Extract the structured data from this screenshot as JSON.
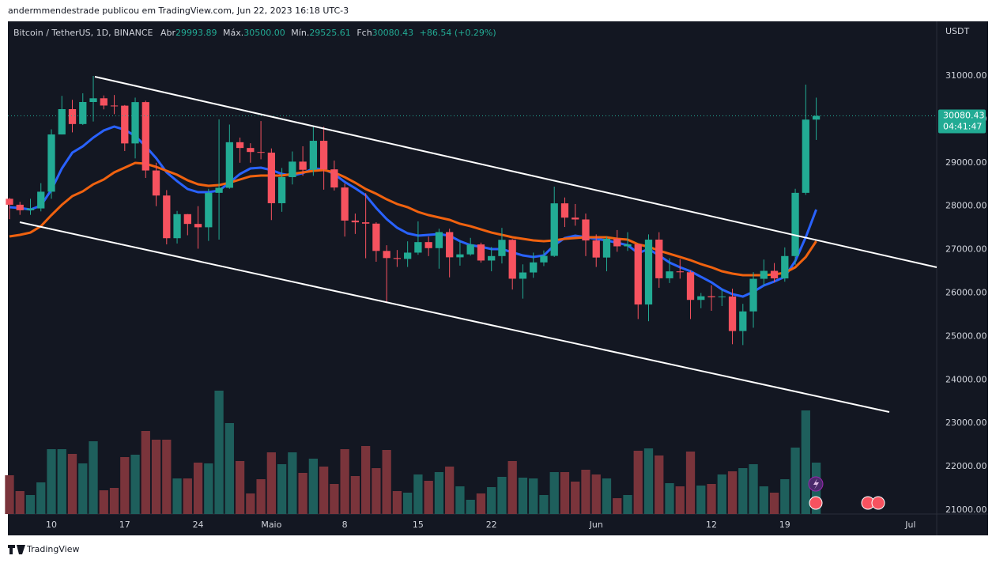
{
  "header": {
    "byline": "andermmendestrade publicou em TradingView.com, Jun 22, 2023 16:18 UTC-3",
    "brand": "TradingView"
  },
  "chart_data": {
    "type": "candlestick",
    "title": "Bitcoin / TetherUS, 1D, BINANCE",
    "legend": [
      {
        "label": "Abr",
        "value": "29993.89"
      },
      {
        "label": "Máx.",
        "value": "30500.00"
      },
      {
        "label": "Mín.",
        "value": "29525.61"
      },
      {
        "label": "Fch",
        "value": "30080.43"
      }
    ],
    "change": "+86.54 (+0.29%)",
    "currency": "USDT",
    "price_label": {
      "value": 30080.43,
      "label": "30080.43"
    },
    "countdown": "04:41:47",
    "up_color": "#22ab94",
    "down_color": "#f7525f",
    "volume_up_color": "#1e5f5c",
    "volume_down_color": "#7a343b",
    "x": [
      96,
      97,
      98,
      99,
      100,
      101,
      102,
      103,
      104,
      105,
      106,
      107,
      108,
      109,
      110,
      111,
      112,
      113,
      114,
      115,
      116,
      117,
      118,
      119,
      120,
      121,
      122,
      123,
      124,
      125,
      126,
      127,
      128,
      129,
      130,
      131,
      132,
      133,
      134,
      135,
      136,
      137,
      138,
      139,
      140,
      141,
      142,
      143,
      144,
      145,
      146,
      147,
      148,
      149,
      150,
      151,
      152,
      153,
      154,
      155,
      156,
      157,
      158,
      159,
      160,
      161,
      162,
      163,
      164,
      165,
      166,
      167,
      168,
      169,
      170,
      171,
      172,
      173
    ],
    "open": [
      28170,
      28033,
      27906,
      27948,
      28333,
      29652,
      30235,
      29892,
      30399,
      30485,
      30318,
      30315,
      29445,
      30397,
      28822,
      28245,
      27262,
      27816,
      27591,
      27514,
      28307,
      28423,
      29473,
      29340,
      29248,
      29233,
      28068,
      28669,
      29026,
      28838,
      29506,
      28848,
      28430,
      27668,
      27628,
      27598,
      26969,
      26805,
      26785,
      26930,
      27172,
      27033,
      27403,
      26822,
      26890,
      27118,
      26748,
      26851,
      27225,
      26329,
      26473,
      26705,
      26855,
      28065,
      27736,
      27694,
      27210,
      26817,
      27249,
      27075,
      27120,
      25735,
      27229,
      26339,
      26498,
      26478,
      25841,
      25925,
      25902,
      25920,
      25124,
      25576,
      26327,
      26510,
      26336,
      26851,
      28307,
      29993.89
    ],
    "high": [
      28190,
      28100,
      28170,
      28530,
      29770,
      30540,
      30450,
      30600,
      31000,
      30550,
      30560,
      30330,
      30500,
      30430,
      29000,
      28370,
      27890,
      27820,
      28000,
      28400,
      30000,
      29880,
      29580,
      29450,
      29960,
      29330,
      28880,
      29260,
      29380,
      29850,
      29830,
      29050,
      28520,
      27830,
      28300,
      27630,
      27100,
      26990,
      27190,
      27650,
      27300,
      27480,
      27480,
      27200,
      27270,
      27160,
      27060,
      27500,
      27240,
      26660,
      26930,
      26980,
      28450,
      28200,
      28050,
      27830,
      27350,
      27300,
      27450,
      27400,
      27130,
      27350,
      27400,
      26800,
      26780,
      26520,
      26000,
      26180,
      26090,
      26100,
      25750,
      26480,
      26770,
      26690,
      27050,
      28400,
      30800,
      30500
    ],
    "low": [
      27700,
      27800,
      27800,
      27880,
      28170,
      29650,
      29700,
      29870,
      29950,
      30230,
      30120,
      29270,
      29100,
      28650,
      28000,
      27120,
      27140,
      27330,
      27020,
      27200,
      27230,
      28400,
      29000,
      29000,
      29080,
      27680,
      27870,
      28500,
      28700,
      28700,
      28380,
      28360,
      27300,
      27360,
      26800,
      26720,
      25800,
      26600,
      26600,
      26880,
      26850,
      26560,
      26360,
      26630,
      26860,
      26700,
      26500,
      26680,
      26080,
      25870,
      26350,
      26620,
      26830,
      27520,
      27550,
      26850,
      26600,
      26500,
      26950,
      26970,
      25400,
      25350,
      26120,
      26230,
      26330,
      25400,
      25650,
      25590,
      25700,
      24820,
      24800,
      25200,
      26170,
      26250,
      26260,
      26650,
      28260,
      29525.61
    ],
    "close": [
      28033,
      27906,
      27948,
      28333,
      29652,
      30235,
      29892,
      30399,
      30485,
      30318,
      30315,
      29445,
      30397,
      28822,
      28245,
      27262,
      27816,
      27591,
      27514,
      28307,
      28423,
      29473,
      29340,
      29248,
      29233,
      28068,
      28669,
      29026,
      28838,
      29506,
      28848,
      28430,
      27668,
      27628,
      27598,
      26969,
      26805,
      26785,
      26930,
      27172,
      27033,
      27403,
      26822,
      26890,
      27118,
      26748,
      26851,
      27225,
      26329,
      26473,
      26705,
      26855,
      28065,
      27736,
      27694,
      27210,
      26817,
      27249,
      27075,
      27120,
      25735,
      27229,
      26339,
      26498,
      26478,
      25841,
      25925,
      25902,
      25920,
      25124,
      25576,
      26327,
      26510,
      26336,
      26851,
      28307,
      29993.89,
      30080.43
    ],
    "volume": [
      49000,
      29000,
      24000,
      40000,
      82000,
      82000,
      76000,
      64000,
      92000,
      30000,
      33000,
      72000,
      75000,
      105000,
      94000,
      94000,
      45000,
      45000,
      65000,
      64000,
      156000,
      115000,
      67000,
      26000,
      44000,
      78000,
      63000,
      78000,
      52000,
      70000,
      60000,
      38000,
      82000,
      48000,
      86000,
      58000,
      81000,
      29000,
      27000,
      50000,
      42000,
      53000,
      60000,
      35000,
      18000,
      26000,
      34000,
      47000,
      67000,
      46000,
      45000,
      24000,
      53000,
      53000,
      41000,
      56000,
      50000,
      45000,
      20000,
      24000,
      80000,
      83000,
      74000,
      39000,
      35000,
      79000,
      36000,
      38000,
      50000,
      54000,
      58000,
      63000,
      35000,
      27000,
      44000,
      84000,
      131000,
      65000
    ],
    "lines": [
      {
        "color": "#2962ff",
        "values": [
          27976,
          27958,
          27922,
          28013,
          28377,
          28869,
          29233,
          29379,
          29579,
          29743,
          29834,
          29761,
          29616,
          29379,
          29106,
          28778,
          28577,
          28395,
          28322,
          28322,
          28359,
          28541,
          28741,
          28869,
          28887,
          28832,
          28741,
          28705,
          28760,
          28869,
          28850,
          28741,
          28559,
          28413,
          28250,
          27958,
          27703,
          27503,
          27375,
          27321,
          27339,
          27357,
          27321,
          27193,
          27102,
          27066,
          27011,
          27011,
          26938,
          26865,
          26829,
          26865,
          27102,
          27266,
          27321,
          27284,
          27248,
          27211,
          27157,
          27102,
          26920,
          27011,
          26865,
          26701,
          26592,
          26501,
          26373,
          26246,
          26082,
          25973,
          25918,
          26027,
          26173,
          26264,
          26373,
          26738,
          27284,
          27922
        ]
      },
      {
        "color": "#f0620f",
        "values": [
          27302,
          27339,
          27393,
          27539,
          27794,
          28031,
          28231,
          28341,
          28504,
          28614,
          28778,
          28887,
          28996,
          28978,
          28905,
          28814,
          28723,
          28596,
          28504,
          28468,
          28486,
          28541,
          28614,
          28687,
          28705,
          28705,
          28705,
          28741,
          28778,
          28814,
          28832,
          28778,
          28668,
          28541,
          28395,
          28286,
          28158,
          28049,
          27976,
          27867,
          27794,
          27740,
          27685,
          27594,
          27539,
          27466,
          27393,
          27339,
          27284,
          27248,
          27211,
          27193,
          27211,
          27248,
          27266,
          27284,
          27284,
          27284,
          27248,
          27230,
          27120,
          27066,
          26975,
          26902,
          26829,
          26756,
          26665,
          26592,
          26501,
          26446,
          26410,
          26410,
          26410,
          26428,
          26465,
          26592,
          26829,
          27193
        ]
      }
    ],
    "xlim": [
      95.85,
      184.5
    ],
    "xticks": [
      {
        "value": 100,
        "label": "10"
      },
      {
        "value": 107,
        "label": "17"
      },
      {
        "value": 114,
        "label": "24"
      },
      {
        "value": 121,
        "label": "Maio"
      },
      {
        "value": 128,
        "label": "8"
      },
      {
        "value": 135,
        "label": "15"
      },
      {
        "value": 142,
        "label": "22"
      },
      {
        "value": 152,
        "label": "Jun"
      },
      {
        "value": 163,
        "label": "12"
      },
      {
        "value": 170,
        "label": "19"
      },
      {
        "value": 182,
        "label": "Jul"
      }
    ],
    "ylim": [
      20909,
      32257
    ],
    "yticks": [
      {
        "value": 21000,
        "label": "21000.00"
      },
      {
        "value": 22000,
        "label": "22000.00"
      },
      {
        "value": 23000,
        "label": "23000.00"
      },
      {
        "value": 24000,
        "label": "24000.00"
      },
      {
        "value": 25000,
        "label": "25000.00"
      },
      {
        "value": 26000,
        "label": "26000.00"
      },
      {
        "value": 27000,
        "label": "27000.00"
      },
      {
        "value": 28000,
        "label": "28000.00"
      },
      {
        "value": 29000,
        "label": "29000.00"
      },
      {
        "value": 30000,
        "label": "30000.00"
      },
      {
        "value": 31000,
        "label": "31000.00"
      }
    ],
    "y2lim": [
      0,
      623000
    ],
    "grid": false
  }
}
